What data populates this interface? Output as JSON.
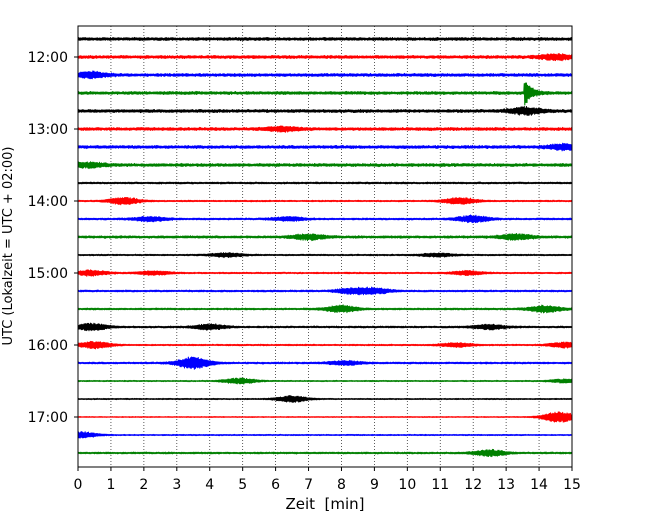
{
  "chart_data": {
    "type": "line",
    "title": "",
    "xlabel": "Zeit  [min]",
    "ylabel": "UTC (Lokalzeit = UTC + 02:00)",
    "xlim": [
      0,
      15
    ],
    "x_ticks": [
      "0",
      "1",
      "2",
      "3",
      "4",
      "5",
      "6",
      "7",
      "8",
      "9",
      "10",
      "11",
      "12",
      "13",
      "14",
      "15"
    ],
    "y_tick_labels": [
      "12:00",
      "13:00",
      "14:00",
      "15:00",
      "16:00",
      "17:00"
    ],
    "grid": "vertical dotted",
    "line_colors": [
      "#000000",
      "#ff0000",
      "#0000ff",
      "#008000"
    ],
    "traces_start": "11:45",
    "trace_interval_minutes": 15,
    "traces": [
      {
        "start": "11:45",
        "color": "#000000",
        "amplitude": 0.5,
        "events": []
      },
      {
        "start": "12:00",
        "color": "#ff0000",
        "amplitude": 0.5,
        "events": [
          {
            "minute": 14.5,
            "amplitude": 0.8
          }
        ]
      },
      {
        "start": "12:15",
        "color": "#0000ff",
        "amplitude": 0.5,
        "events": [
          {
            "minute": 0.4,
            "amplitude": 0.8
          }
        ]
      },
      {
        "start": "12:30",
        "color": "#008000",
        "amplitude": 0.5,
        "events": [
          {
            "minute": 13.6,
            "amplitude": 3.5
          }
        ]
      },
      {
        "start": "12:45",
        "color": "#000000",
        "amplitude": 0.5,
        "events": [
          {
            "minute": 13.6,
            "amplitude": 1.0
          }
        ]
      },
      {
        "start": "13:00",
        "color": "#ff0000",
        "amplitude": 0.5,
        "events": [
          {
            "minute": 6.2,
            "amplitude": 0.6
          }
        ]
      },
      {
        "start": "13:15",
        "color": "#0000ff",
        "amplitude": 0.5,
        "events": [
          {
            "minute": 14.8,
            "amplitude": 0.8
          }
        ]
      },
      {
        "start": "13:30",
        "color": "#008000",
        "amplitude": 0.5,
        "events": [
          {
            "minute": 0.3,
            "amplitude": 0.7
          }
        ]
      },
      {
        "start": "13:45",
        "color": "#000000",
        "amplitude": 0.3,
        "events": []
      },
      {
        "start": "14:00",
        "color": "#ff0000",
        "amplitude": 0.25,
        "events": [
          {
            "minute": 1.4,
            "amplitude": 1.0
          },
          {
            "minute": 11.6,
            "amplitude": 1.0
          }
        ]
      },
      {
        "start": "14:15",
        "color": "#0000ff",
        "amplitude": 0.3,
        "events": [
          {
            "minute": 2.2,
            "amplitude": 0.7
          },
          {
            "minute": 6.4,
            "amplitude": 0.6
          },
          {
            "minute": 12.0,
            "amplitude": 1.0
          }
        ]
      },
      {
        "start": "14:30",
        "color": "#008000",
        "amplitude": 0.4,
        "events": [
          {
            "minute": 7.0,
            "amplitude": 0.8
          },
          {
            "minute": 13.3,
            "amplitude": 0.8
          }
        ]
      },
      {
        "start": "14:45",
        "color": "#000000",
        "amplitude": 0.25,
        "events": [
          {
            "minute": 4.5,
            "amplitude": 0.6
          },
          {
            "minute": 10.9,
            "amplitude": 0.5
          }
        ]
      },
      {
        "start": "15:00",
        "color": "#ff0000",
        "amplitude": 0.25,
        "events": [
          {
            "minute": 0.4,
            "amplitude": 0.8
          },
          {
            "minute": 2.3,
            "amplitude": 0.6
          },
          {
            "minute": 11.8,
            "amplitude": 0.6
          }
        ]
      },
      {
        "start": "15:15",
        "color": "#0000ff",
        "amplitude": 0.3,
        "events": [
          {
            "minute": 8.3,
            "amplitude": 0.8
          },
          {
            "minute": 9.0,
            "amplitude": 0.8
          }
        ]
      },
      {
        "start": "15:30",
        "color": "#008000",
        "amplitude": 0.3,
        "events": [
          {
            "minute": 8.0,
            "amplitude": 1.0
          },
          {
            "minute": 14.2,
            "amplitude": 1.0
          }
        ]
      },
      {
        "start": "15:45",
        "color": "#000000",
        "amplitude": 0.3,
        "events": [
          {
            "minute": 0.4,
            "amplitude": 1.0
          },
          {
            "minute": 4.0,
            "amplitude": 0.8
          },
          {
            "minute": 12.5,
            "amplitude": 0.7
          }
        ]
      },
      {
        "start": "16:00",
        "color": "#ff0000",
        "amplitude": 0.25,
        "events": [
          {
            "minute": 0.5,
            "amplitude": 1.0
          },
          {
            "minute": 11.5,
            "amplitude": 0.6
          },
          {
            "minute": 14.8,
            "amplitude": 0.8
          }
        ]
      },
      {
        "start": "16:15",
        "color": "#0000ff",
        "amplitude": 0.3,
        "events": [
          {
            "minute": 3.5,
            "amplitude": 1.8
          },
          {
            "minute": 8.1,
            "amplitude": 0.6
          }
        ]
      },
      {
        "start": "16:30",
        "color": "#008000",
        "amplitude": 0.2,
        "events": [
          {
            "minute": 4.9,
            "amplitude": 0.8
          },
          {
            "minute": 14.8,
            "amplitude": 0.5
          }
        ]
      },
      {
        "start": "16:45",
        "color": "#000000",
        "amplitude": 0.2,
        "events": [
          {
            "minute": 6.5,
            "amplitude": 0.9
          }
        ]
      },
      {
        "start": "17:00",
        "color": "#ff0000",
        "amplitude": 0.15,
        "events": [
          {
            "minute": 14.6,
            "amplitude": 1.6
          }
        ]
      },
      {
        "start": "17:15",
        "color": "#0000ff",
        "amplitude": 0.2,
        "events": [
          {
            "minute": 0.1,
            "amplitude": 0.9
          }
        ]
      },
      {
        "start": "17:30",
        "color": "#008000",
        "amplitude": 0.3,
        "events": [
          {
            "minute": 12.5,
            "amplitude": 0.9
          }
        ]
      }
    ]
  }
}
